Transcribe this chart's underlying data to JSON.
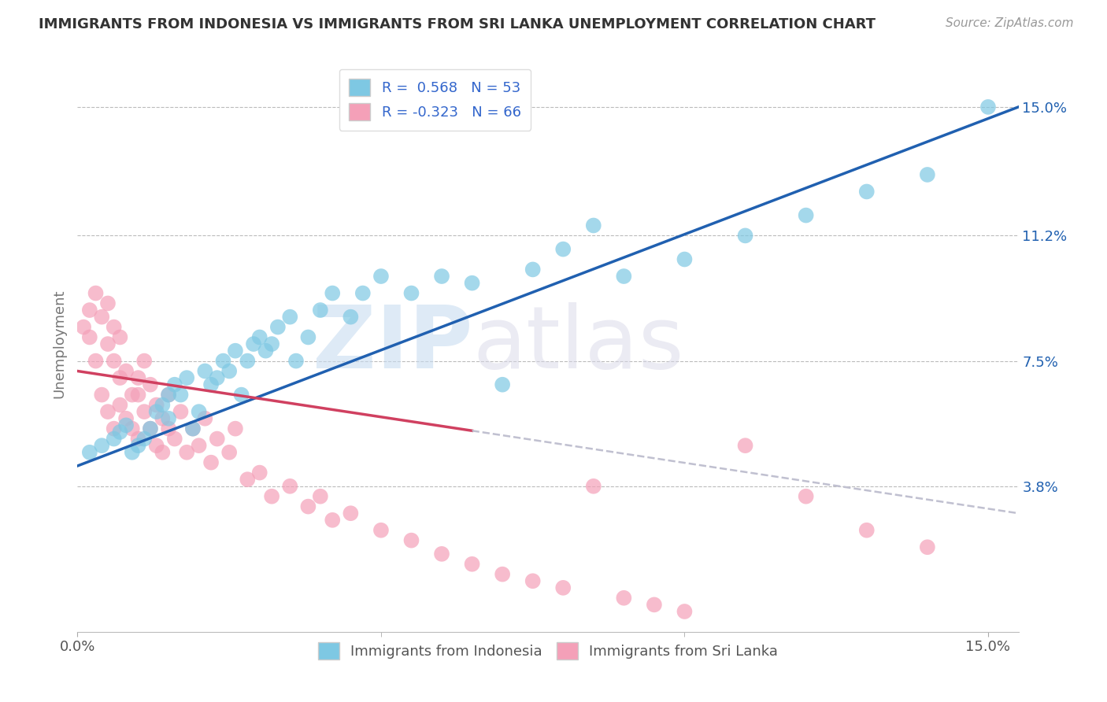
{
  "title": "IMMIGRANTS FROM INDONESIA VS IMMIGRANTS FROM SRI LANKA UNEMPLOYMENT CORRELATION CHART",
  "source": "Source: ZipAtlas.com",
  "ylabel": "Unemployment",
  "y_tick_values": [
    0.038,
    0.075,
    0.112,
    0.15
  ],
  "y_tick_labels": [
    "3.8%",
    "7.5%",
    "11.2%",
    "15.0%"
  ],
  "legend_indonesia": "Immigrants from Indonesia",
  "legend_srilanka": "Immigrants from Sri Lanka",
  "r_indonesia": "0.568",
  "n_indonesia": "53",
  "r_srilanka": "-0.323",
  "n_srilanka": "66",
  "color_indonesia": "#7EC8E3",
  "color_srilanka": "#F4A0B8",
  "color_trendline_indonesia": "#2060B0",
  "color_trendline_srilanka": "#D04060",
  "color_trendline_dashed": "#C0C0D0",
  "xlim": [
    0.0,
    0.155
  ],
  "ylim": [
    -0.005,
    0.165
  ],
  "indonesia_x": [
    0.002,
    0.004,
    0.006,
    0.007,
    0.008,
    0.009,
    0.01,
    0.011,
    0.012,
    0.013,
    0.014,
    0.015,
    0.015,
    0.016,
    0.017,
    0.018,
    0.019,
    0.02,
    0.021,
    0.022,
    0.023,
    0.024,
    0.025,
    0.026,
    0.027,
    0.028,
    0.029,
    0.03,
    0.031,
    0.032,
    0.033,
    0.035,
    0.036,
    0.038,
    0.04,
    0.042,
    0.045,
    0.047,
    0.05,
    0.055,
    0.06,
    0.065,
    0.07,
    0.075,
    0.08,
    0.085,
    0.09,
    0.1,
    0.11,
    0.12,
    0.13,
    0.14,
    0.15
  ],
  "indonesia_y": [
    0.048,
    0.05,
    0.052,
    0.054,
    0.056,
    0.048,
    0.05,
    0.052,
    0.055,
    0.06,
    0.062,
    0.058,
    0.065,
    0.068,
    0.065,
    0.07,
    0.055,
    0.06,
    0.072,
    0.068,
    0.07,
    0.075,
    0.072,
    0.078,
    0.065,
    0.075,
    0.08,
    0.082,
    0.078,
    0.08,
    0.085,
    0.088,
    0.075,
    0.082,
    0.09,
    0.095,
    0.088,
    0.095,
    0.1,
    0.095,
    0.1,
    0.098,
    0.068,
    0.102,
    0.108,
    0.115,
    0.1,
    0.105,
    0.112,
    0.118,
    0.125,
    0.13,
    0.15
  ],
  "srilanka_x": [
    0.001,
    0.002,
    0.002,
    0.003,
    0.003,
    0.004,
    0.004,
    0.005,
    0.005,
    0.005,
    0.006,
    0.006,
    0.006,
    0.007,
    0.007,
    0.007,
    0.008,
    0.008,
    0.009,
    0.009,
    0.01,
    0.01,
    0.01,
    0.011,
    0.011,
    0.012,
    0.012,
    0.013,
    0.013,
    0.014,
    0.014,
    0.015,
    0.015,
    0.016,
    0.017,
    0.018,
    0.019,
    0.02,
    0.021,
    0.022,
    0.023,
    0.025,
    0.026,
    0.028,
    0.03,
    0.032,
    0.035,
    0.038,
    0.04,
    0.042,
    0.045,
    0.05,
    0.055,
    0.06,
    0.065,
    0.07,
    0.075,
    0.08,
    0.085,
    0.09,
    0.095,
    0.1,
    0.11,
    0.12,
    0.13,
    0.14
  ],
  "srilanka_y": [
    0.085,
    0.09,
    0.082,
    0.095,
    0.075,
    0.088,
    0.065,
    0.08,
    0.06,
    0.092,
    0.075,
    0.055,
    0.085,
    0.07,
    0.062,
    0.082,
    0.058,
    0.072,
    0.065,
    0.055,
    0.07,
    0.052,
    0.065,
    0.06,
    0.075,
    0.055,
    0.068,
    0.05,
    0.062,
    0.048,
    0.058,
    0.055,
    0.065,
    0.052,
    0.06,
    0.048,
    0.055,
    0.05,
    0.058,
    0.045,
    0.052,
    0.048,
    0.055,
    0.04,
    0.042,
    0.035,
    0.038,
    0.032,
    0.035,
    0.028,
    0.03,
    0.025,
    0.022,
    0.018,
    0.015,
    0.012,
    0.01,
    0.008,
    0.038,
    0.005,
    0.003,
    0.001,
    0.05,
    0.035,
    0.025,
    0.02
  ],
  "trendline_indo_x0": 0.0,
  "trendline_indo_x1": 0.155,
  "trendline_indo_y0": 0.044,
  "trendline_indo_y1": 0.15,
  "trendline_sri_x0": 0.0,
  "trendline_sri_x1": 0.155,
  "trendline_sri_y0": 0.072,
  "trendline_sri_y1": 0.03,
  "trendline_sri_solid_end": 0.065
}
